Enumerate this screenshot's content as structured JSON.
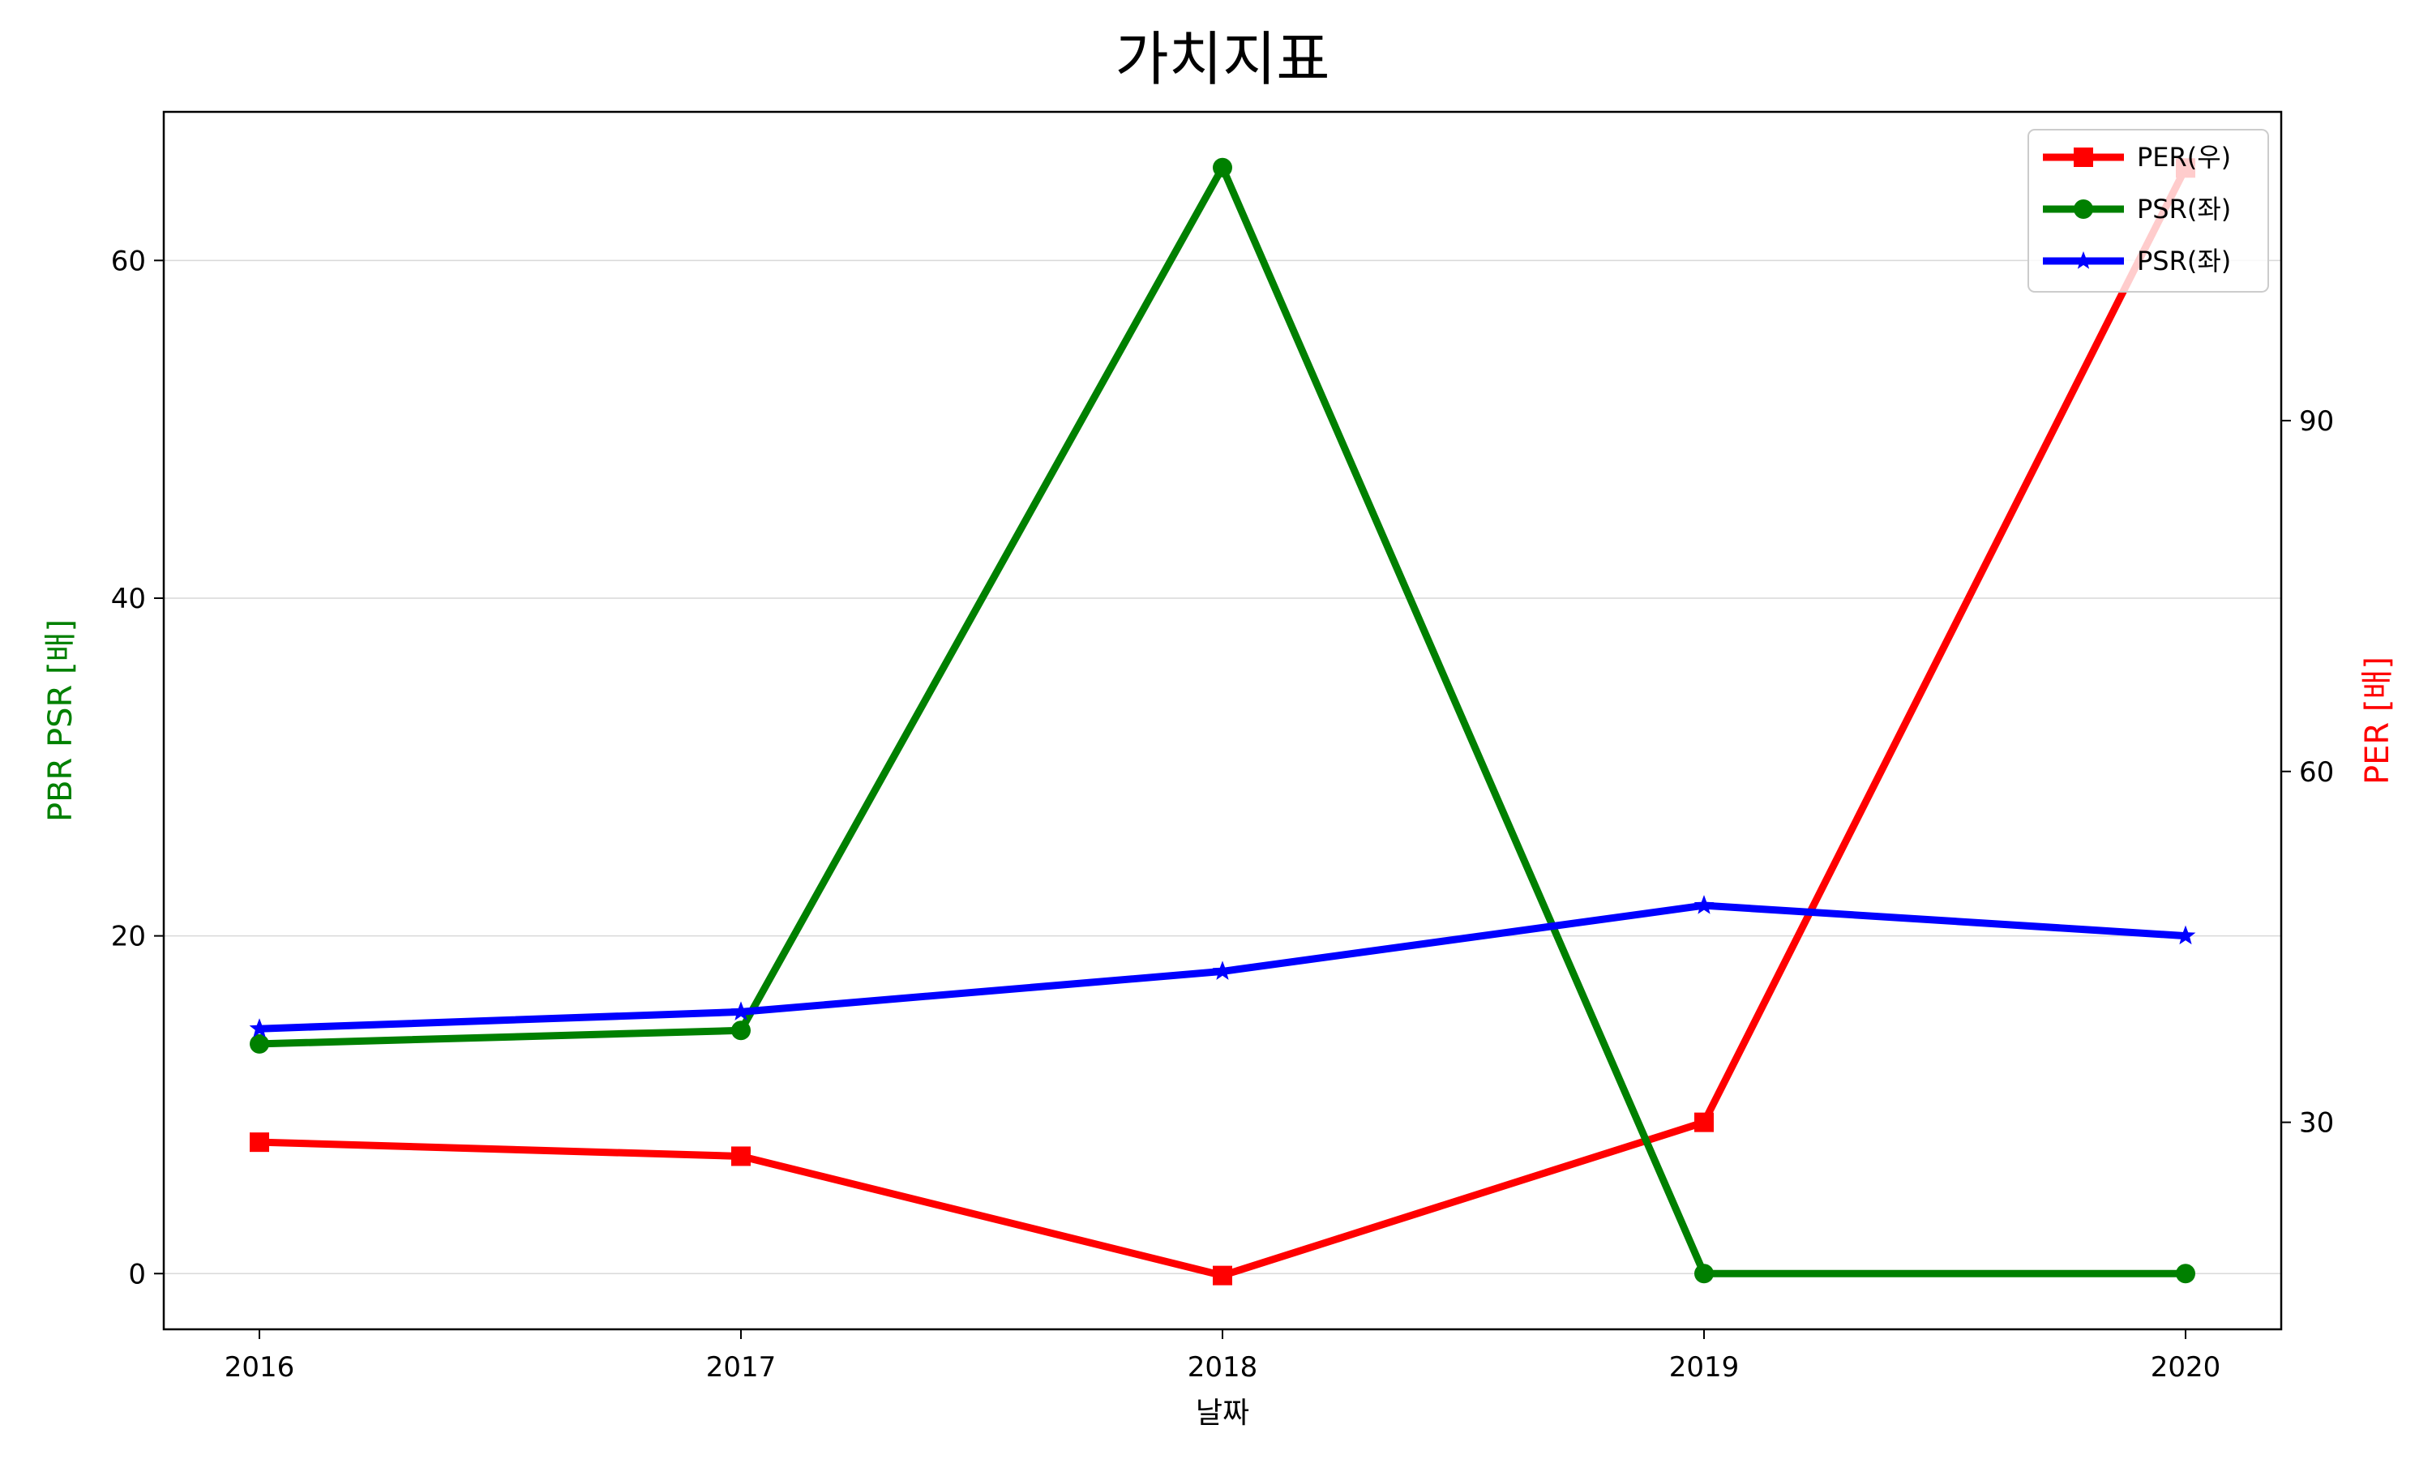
{
  "chart_data": {
    "type": "line",
    "title": "가치지표",
    "xlabel": "날짜",
    "ylabel_left": "PBR PSR [배]",
    "ylabel_right": "PER [배]",
    "categories": [
      "2016",
      "2017",
      "2018",
      "2019",
      "2020"
    ],
    "left_axis": {
      "ylim": [
        -3.3,
        68.8
      ],
      "ticks": [
        0,
        20,
        40,
        60
      ]
    },
    "right_axis": {
      "ylim": [
        12.3,
        116.4
      ],
      "ticks": [
        30,
        60,
        90
      ]
    },
    "grid": "horizontal-left",
    "legend_position": "top-right",
    "series": [
      {
        "name": "PER(우)",
        "axis": "right",
        "color": "#ff0000",
        "marker": "square",
        "values": [
          28.3,
          27.1,
          16.9,
          30.0,
          111.6
        ]
      },
      {
        "name": "PSR(좌)",
        "axis": "left",
        "color": "#008000",
        "marker": "circle",
        "values": [
          13.6,
          14.4,
          65.5,
          0.0,
          0.0
        ]
      },
      {
        "name": "PSR(좌)",
        "axis": "left",
        "color": "#0000ff",
        "marker": "star",
        "values": [
          14.5,
          15.5,
          17.9,
          21.8,
          20.0
        ]
      }
    ]
  }
}
